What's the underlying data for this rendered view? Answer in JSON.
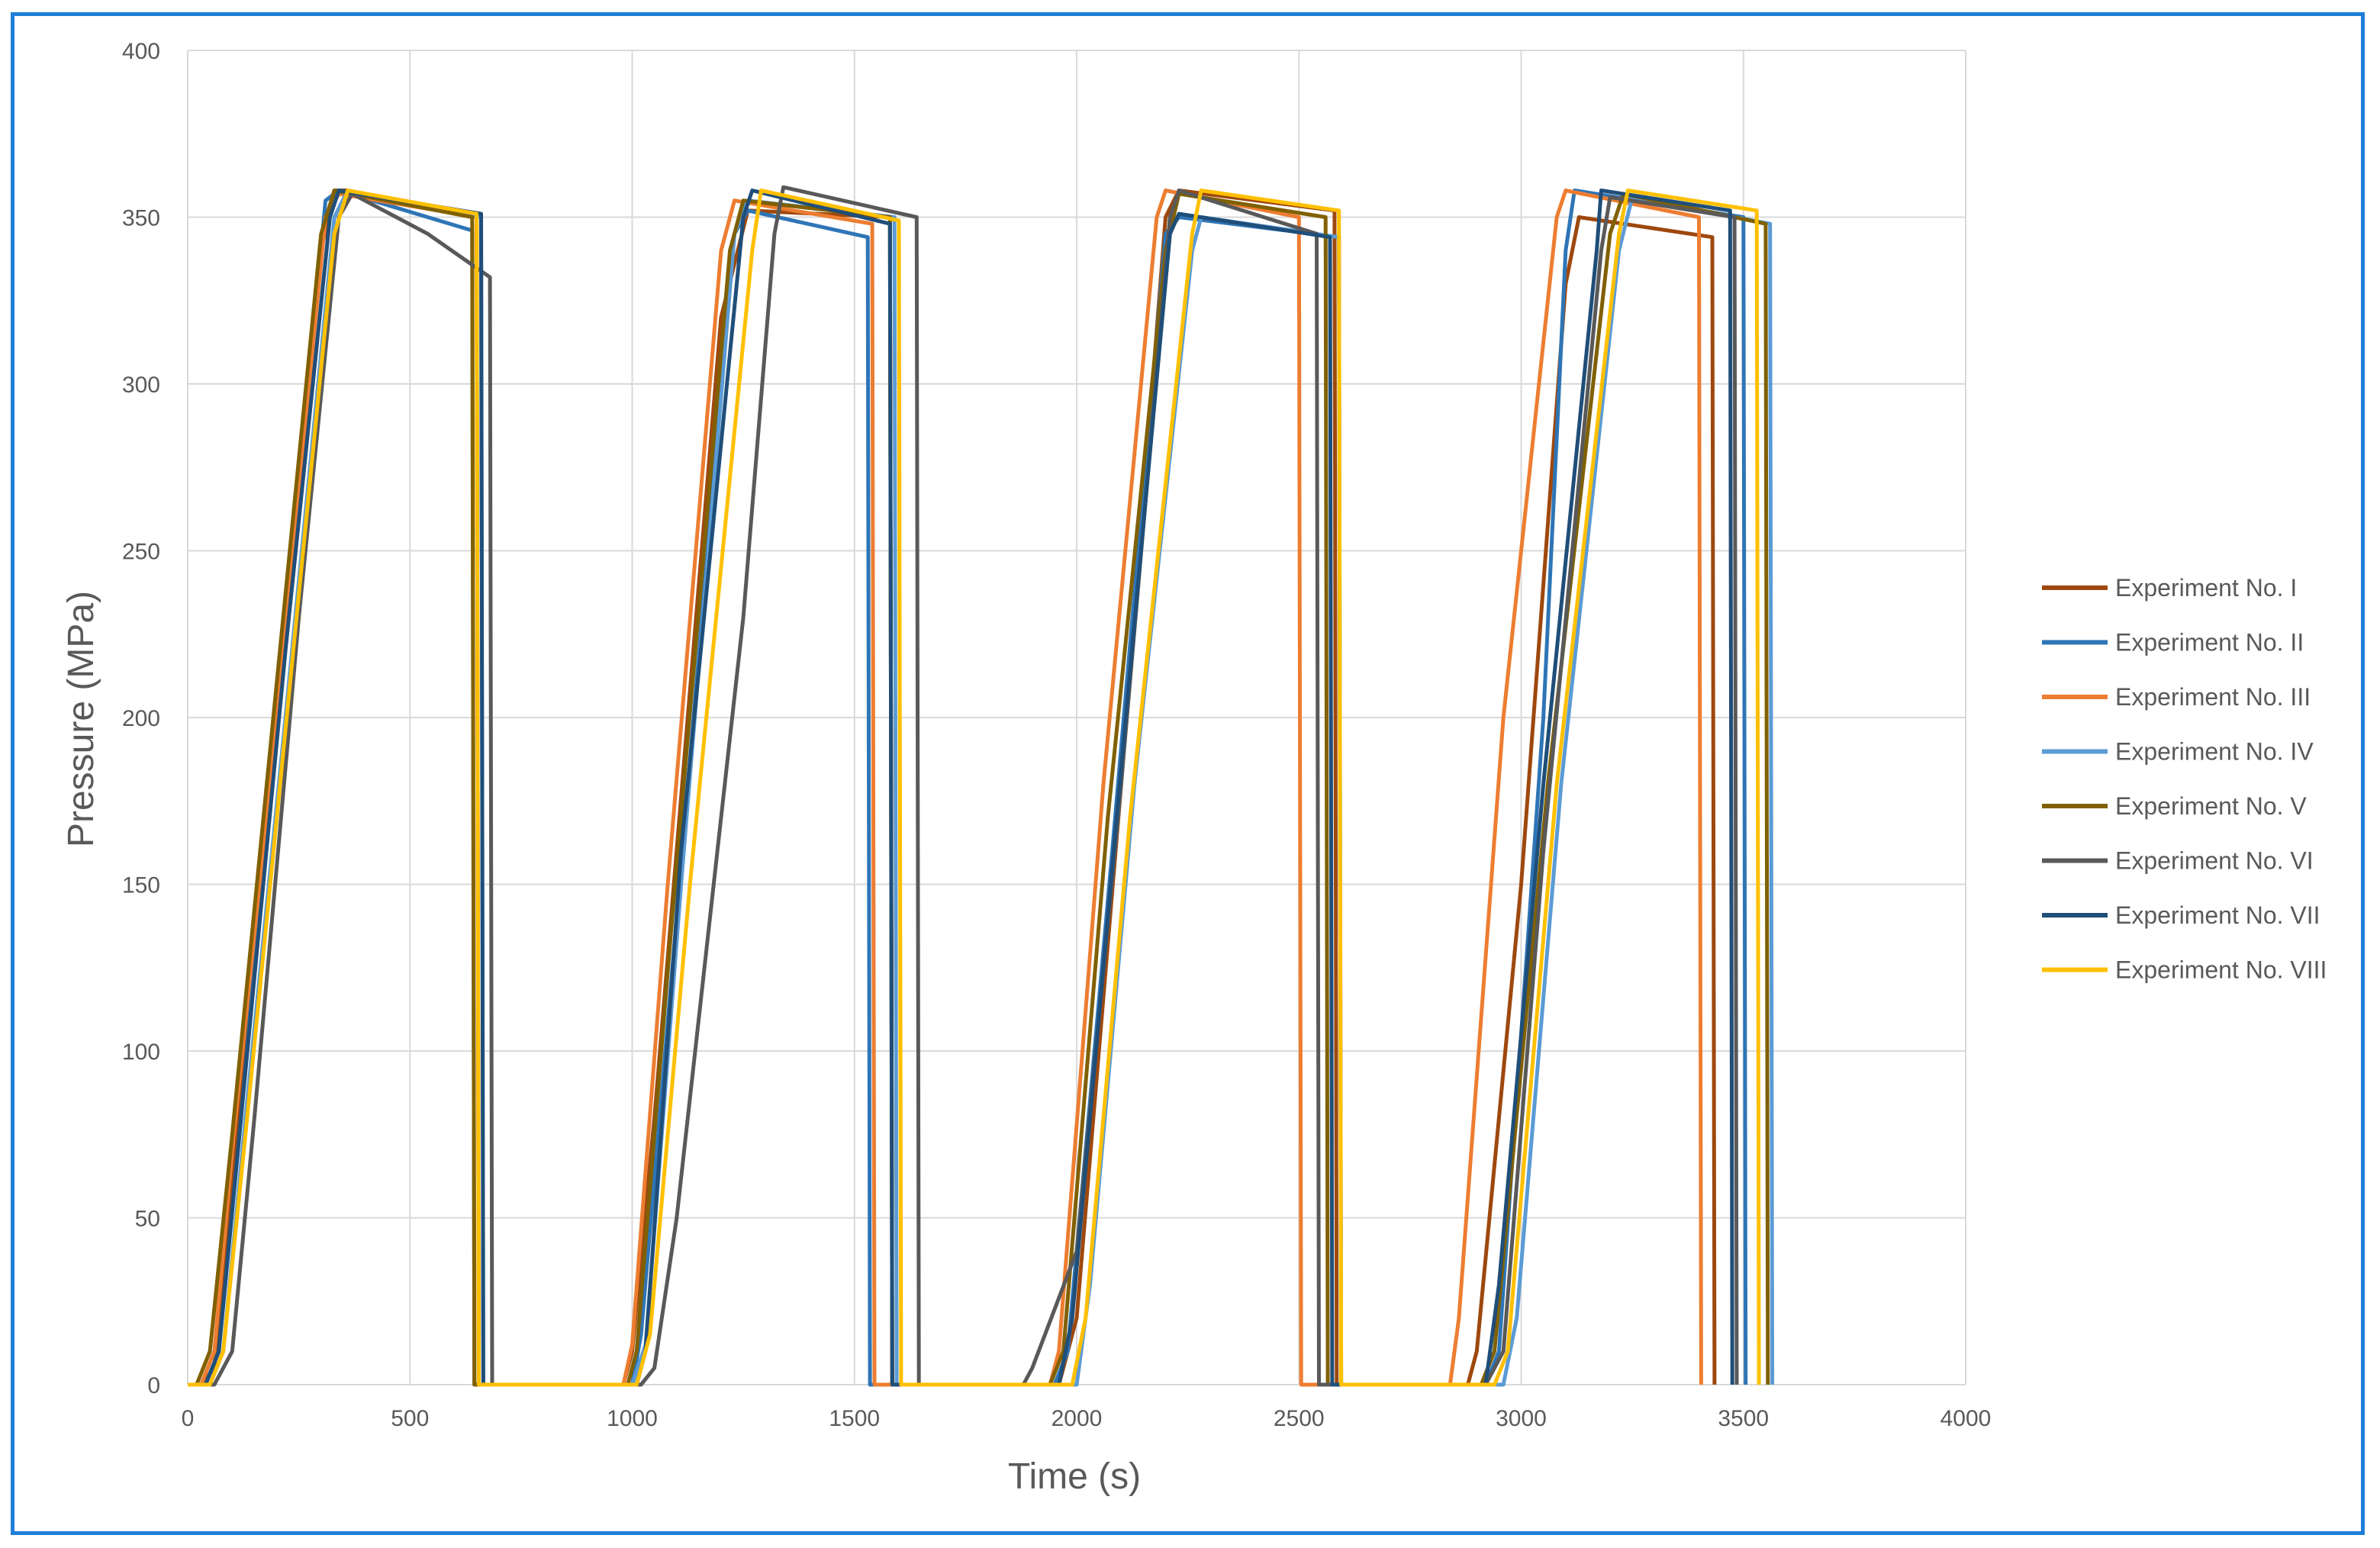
{
  "chart_data": {
    "type": "line",
    "title": "",
    "xlabel": "Time (s)",
    "ylabel": "Pressure (MPa)",
    "xlim": [
      0,
      4000
    ],
    "ylim": [
      0,
      400
    ],
    "x_ticks": [
      0,
      500,
      1000,
      1500,
      2000,
      2500,
      3000,
      3500,
      4000
    ],
    "y_ticks": [
      0,
      50,
      100,
      150,
      200,
      250,
      300,
      350,
      400
    ],
    "grid": true,
    "legend_position": "right",
    "series": [
      {
        "name": "Experiment No. I",
        "color": "#9e480e",
        "points": [
          [
            0,
            0
          ],
          [
            30,
            0
          ],
          [
            60,
            5
          ],
          [
            100,
            60
          ],
          [
            200,
            200
          ],
          [
            300,
            340
          ],
          [
            330,
            358
          ],
          [
            360,
            358
          ],
          [
            650,
            350
          ],
          [
            655,
            0
          ],
          [
            980,
            0
          ],
          [
            1000,
            10
          ],
          [
            1050,
            80
          ],
          [
            1200,
            320
          ],
          [
            1260,
            352
          ],
          [
            1580,
            350
          ],
          [
            1585,
            0
          ],
          [
            1960,
            0
          ],
          [
            2000,
            20
          ],
          [
            2100,
            180
          ],
          [
            2200,
            350
          ],
          [
            2230,
            358
          ],
          [
            2580,
            352
          ],
          [
            2585,
            0
          ],
          [
            2880,
            0
          ],
          [
            2900,
            10
          ],
          [
            3000,
            150
          ],
          [
            3100,
            330
          ],
          [
            3130,
            350
          ],
          [
            3430,
            344
          ],
          [
            3435,
            0
          ]
        ]
      },
      {
        "name": "Experiment No. II",
        "color": "#2e75b6",
        "points": [
          [
            0,
            0
          ],
          [
            40,
            0
          ],
          [
            70,
            10
          ],
          [
            120,
            80
          ],
          [
            200,
            200
          ],
          [
            310,
            355
          ],
          [
            340,
            358
          ],
          [
            640,
            346
          ],
          [
            645,
            0
          ],
          [
            1000,
            0
          ],
          [
            1020,
            15
          ],
          [
            1100,
            140
          ],
          [
            1230,
            345
          ],
          [
            1260,
            352
          ],
          [
            1530,
            344
          ],
          [
            1535,
            0
          ],
          [
            1950,
            0
          ],
          [
            1980,
            10
          ],
          [
            2080,
            160
          ],
          [
            2200,
            345
          ],
          [
            2230,
            350
          ],
          [
            2590,
            344
          ],
          [
            2595,
            0
          ],
          [
            2920,
            0
          ],
          [
            2950,
            10
          ],
          [
            3050,
            200
          ],
          [
            3100,
            340
          ],
          [
            3120,
            358
          ],
          [
            3500,
            350
          ],
          [
            3505,
            0
          ]
        ]
      },
      {
        "name": "Experiment No. III",
        "color": "#ed7d31",
        "points": [
          [
            0,
            0
          ],
          [
            30,
            0
          ],
          [
            60,
            10
          ],
          [
            100,
            70
          ],
          [
            200,
            200
          ],
          [
            310,
            350
          ],
          [
            340,
            357
          ],
          [
            650,
            350
          ],
          [
            655,
            0
          ],
          [
            980,
            0
          ],
          [
            1000,
            12
          ],
          [
            1080,
            150
          ],
          [
            1200,
            340
          ],
          [
            1230,
            355
          ],
          [
            1540,
            348
          ],
          [
            1545,
            0
          ],
          [
            1940,
            0
          ],
          [
            1960,
            10
          ],
          [
            2060,
            180
          ],
          [
            2180,
            350
          ],
          [
            2200,
            358
          ],
          [
            2500,
            350
          ],
          [
            2505,
            0
          ],
          [
            2840,
            0
          ],
          [
            2860,
            20
          ],
          [
            2960,
            200
          ],
          [
            3080,
            350
          ],
          [
            3100,
            358
          ],
          [
            3400,
            350
          ],
          [
            3405,
            0
          ]
        ]
      },
      {
        "name": "Experiment No. IV",
        "color": "#5b9bd5",
        "points": [
          [
            0,
            0
          ],
          [
            50,
            0
          ],
          [
            80,
            10
          ],
          [
            130,
            80
          ],
          [
            220,
            200
          ],
          [
            330,
            350
          ],
          [
            360,
            358
          ],
          [
            660,
            350
          ],
          [
            665,
            0
          ],
          [
            1000,
            0
          ],
          [
            1030,
            12
          ],
          [
            1110,
            150
          ],
          [
            1230,
            345
          ],
          [
            1260,
            355
          ],
          [
            1590,
            350
          ],
          [
            1595,
            0
          ],
          [
            2000,
            0
          ],
          [
            2030,
            30
          ],
          [
            2130,
            180
          ],
          [
            2260,
            340
          ],
          [
            2280,
            350
          ],
          [
            2590,
            344
          ],
          [
            2595,
            0
          ],
          [
            2960,
            0
          ],
          [
            2990,
            20
          ],
          [
            3090,
            180
          ],
          [
            3220,
            340
          ],
          [
            3250,
            356
          ],
          [
            3560,
            348
          ],
          [
            3565,
            0
          ]
        ]
      },
      {
        "name": "Experiment No. V",
        "color": "#806000",
        "points": [
          [
            0,
            0
          ],
          [
            20,
            0
          ],
          [
            50,
            10
          ],
          [
            100,
            75
          ],
          [
            200,
            210
          ],
          [
            300,
            345
          ],
          [
            330,
            358
          ],
          [
            640,
            350
          ],
          [
            645,
            0
          ],
          [
            990,
            0
          ],
          [
            1010,
            10
          ],
          [
            1090,
            140
          ],
          [
            1220,
            340
          ],
          [
            1250,
            355
          ],
          [
            1580,
            350
          ],
          [
            1585,
            0
          ],
          [
            1940,
            0
          ],
          [
            1970,
            10
          ],
          [
            2070,
            170
          ],
          [
            2200,
            340
          ],
          [
            2230,
            357
          ],
          [
            2560,
            350
          ],
          [
            2565,
            0
          ],
          [
            2910,
            0
          ],
          [
            2940,
            10
          ],
          [
            3060,
            180
          ],
          [
            3200,
            345
          ],
          [
            3230,
            357
          ],
          [
            3550,
            348
          ],
          [
            3555,
            0
          ]
        ]
      },
      {
        "name": "Experiment No. VI",
        "color": "#595959",
        "points": [
          [
            0,
            0
          ],
          [
            60,
            0
          ],
          [
            100,
            10
          ],
          [
            150,
            80
          ],
          [
            250,
            230
          ],
          [
            340,
            350
          ],
          [
            370,
            357
          ],
          [
            540,
            345
          ],
          [
            680,
            332
          ],
          [
            685,
            0
          ],
          [
            1020,
            0
          ],
          [
            1050,
            5
          ],
          [
            1100,
            50
          ],
          [
            1250,
            230
          ],
          [
            1320,
            345
          ],
          [
            1340,
            359
          ],
          [
            1640,
            350
          ],
          [
            1645,
            0
          ],
          [
            1880,
            0
          ],
          [
            1900,
            5
          ],
          [
            2000,
            40
          ],
          [
            2100,
            180
          ],
          [
            2210,
            350
          ],
          [
            2230,
            358
          ],
          [
            2540,
            345
          ],
          [
            2545,
            0
          ],
          [
            2920,
            0
          ],
          [
            2960,
            10
          ],
          [
            3050,
            160
          ],
          [
            3180,
            340
          ],
          [
            3200,
            356
          ],
          [
            3480,
            350
          ],
          [
            3485,
            0
          ]
        ]
      },
      {
        "name": "Experiment No. VII",
        "color": "#1f4e79",
        "points": [
          [
            0,
            0
          ],
          [
            40,
            0
          ],
          [
            70,
            10
          ],
          [
            120,
            80
          ],
          [
            220,
            220
          ],
          [
            320,
            350
          ],
          [
            340,
            358
          ],
          [
            660,
            351
          ],
          [
            665,
            0
          ],
          [
            1010,
            0
          ],
          [
            1030,
            10
          ],
          [
            1110,
            160
          ],
          [
            1250,
            350
          ],
          [
            1270,
            358
          ],
          [
            1580,
            348
          ],
          [
            1585,
            0
          ],
          [
            1960,
            0
          ],
          [
            1990,
            20
          ],
          [
            2090,
            170
          ],
          [
            2210,
            345
          ],
          [
            2230,
            351
          ],
          [
            2570,
            344
          ],
          [
            2575,
            0
          ],
          [
            2920,
            0
          ],
          [
            2950,
            30
          ],
          [
            3050,
            180
          ],
          [
            3170,
            340
          ],
          [
            3180,
            358
          ],
          [
            3470,
            352
          ],
          [
            3475,
            0
          ]
        ]
      },
      {
        "name": "Experiment No. VIII",
        "color": "#ffc000",
        "points": [
          [
            0,
            0
          ],
          [
            50,
            0
          ],
          [
            80,
            10
          ],
          [
            130,
            75
          ],
          [
            230,
            210
          ],
          [
            330,
            345
          ],
          [
            360,
            358
          ],
          [
            650,
            351
          ],
          [
            655,
            0
          ],
          [
            1010,
            0
          ],
          [
            1040,
            15
          ],
          [
            1130,
            150
          ],
          [
            1270,
            340
          ],
          [
            1290,
            358
          ],
          [
            1600,
            349
          ],
          [
            1605,
            0
          ],
          [
            1990,
            0
          ],
          [
            2020,
            20
          ],
          [
            2120,
            170
          ],
          [
            2260,
            345
          ],
          [
            2280,
            358
          ],
          [
            2590,
            352
          ],
          [
            2595,
            0
          ],
          [
            2940,
            0
          ],
          [
            2970,
            10
          ],
          [
            3080,
            180
          ],
          [
            3220,
            345
          ],
          [
            3240,
            358
          ],
          [
            3530,
            352
          ],
          [
            3535,
            0
          ]
        ]
      }
    ]
  }
}
